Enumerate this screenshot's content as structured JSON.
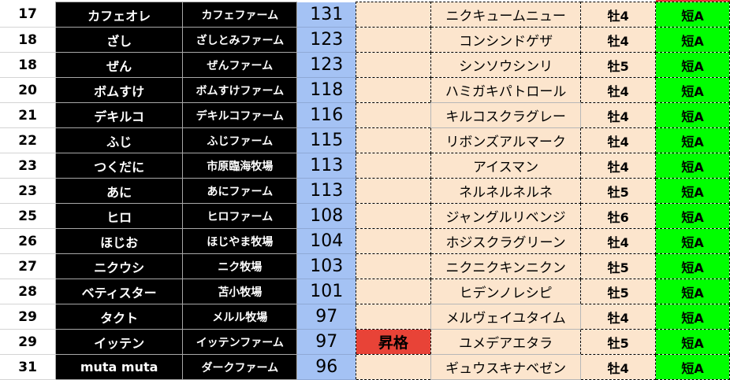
{
  "colors": {
    "name_bg": "#000000",
    "score_bg": "#a4c2f4",
    "horse_bg": "#fce5cd",
    "type_bg": "#00ff00",
    "badge_bg": "#e84337"
  },
  "rows": [
    {
      "rank": "17",
      "name": "カフェオレ",
      "farm": "カフェファーム",
      "score": "131",
      "badge": "",
      "horse": "ニクキュームニュー",
      "age": "牡4",
      "type": "短A"
    },
    {
      "rank": "18",
      "name": "ざし",
      "farm": "ざしとみファーム",
      "score": "123",
      "badge": "",
      "horse": "コンシンドゲザ",
      "age": "牡4",
      "type": "短A"
    },
    {
      "rank": "18",
      "name": "ぜん",
      "farm": "ぜんファーム",
      "score": "123",
      "badge": "",
      "horse": "シンソウシンリ",
      "age": "牡5",
      "type": "短A"
    },
    {
      "rank": "20",
      "name": "ボムすけ",
      "farm": "ボムすけファーム",
      "score": "118",
      "badge": "",
      "horse": "ハミガキパトロール",
      "age": "牡4",
      "type": "短A"
    },
    {
      "rank": "21",
      "name": "デキルコ",
      "farm": "デキルコファーム",
      "score": "116",
      "badge": "",
      "horse": "キルコスクラグレー",
      "age": "牡4",
      "type": "短A",
      "solid": true
    },
    {
      "rank": "22",
      "name": "ふじ",
      "farm": "ふじファーム",
      "score": "115",
      "badge": "",
      "horse": "リボンズアルマーク",
      "age": "牡4",
      "type": "短A"
    },
    {
      "rank": "23",
      "name": "つくだに",
      "farm": "市原臨海牧場",
      "score": "113",
      "badge": "",
      "horse": "アイスマン",
      "age": "牡4",
      "type": "短A"
    },
    {
      "rank": "23",
      "name": "あに",
      "farm": "あにファーム",
      "score": "113",
      "badge": "",
      "horse": "ネルネルネルネ",
      "age": "牡5",
      "type": "短A"
    },
    {
      "rank": "25",
      "name": "ヒロ",
      "farm": "ヒロファーム",
      "score": "108",
      "badge": "",
      "horse": "ジャングルリベンジ",
      "age": "牡6",
      "type": "短A"
    },
    {
      "rank": "26",
      "name": "ほじお",
      "farm": "ほじやま牧場",
      "score": "104",
      "badge": "",
      "horse": "ホジスクラグリーン",
      "age": "牡4",
      "type": "短A"
    },
    {
      "rank": "27",
      "name": "ニクウシ",
      "farm": "ニク牧場",
      "score": "103",
      "badge": "",
      "horse": "ニクニクキンニクン",
      "age": "牡5",
      "type": "短A"
    },
    {
      "rank": "28",
      "name": "ベティスター",
      "farm": "苫小牧場",
      "score": "101",
      "badge": "",
      "horse": "ヒデンノレシピ",
      "age": "牡5",
      "type": "短A"
    },
    {
      "rank": "29",
      "name": "タクト",
      "farm": "メルル牧場",
      "score": "97",
      "badge": "",
      "horse": "メルヴェイユタイム",
      "age": "牡4",
      "type": "短A",
      "solid": true
    },
    {
      "rank": "29",
      "name": "イッテン",
      "farm": "イッテンファーム",
      "score": "97",
      "badge": "昇格",
      "horse": "ユメデアエタラ",
      "age": "牡5",
      "type": "短A"
    },
    {
      "rank": "31",
      "name": "muta muta",
      "farm": "ダークファーム",
      "score": "96",
      "badge": "",
      "horse": "ギュウスキナベゼン",
      "age": "牡4",
      "type": "短A",
      "solid": true
    }
  ]
}
